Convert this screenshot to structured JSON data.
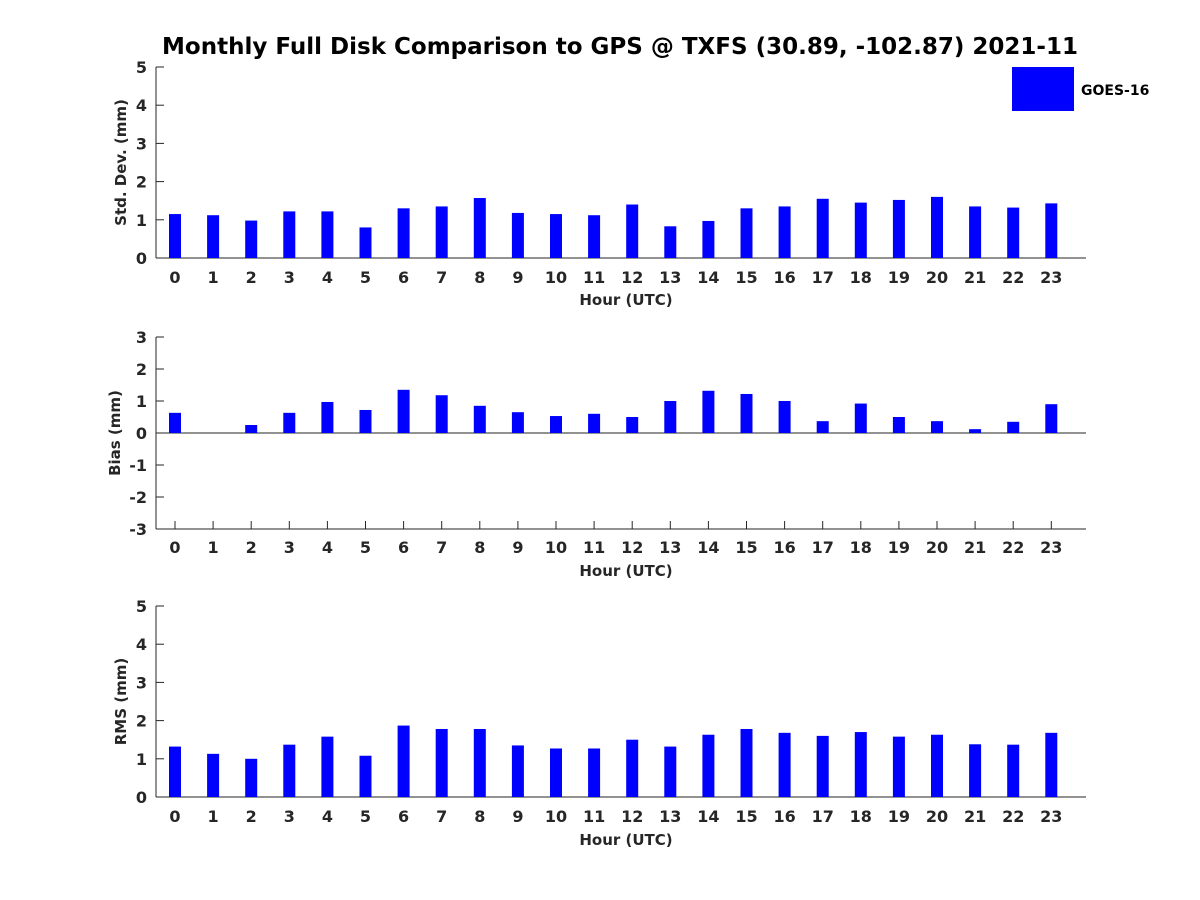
{
  "figure_title": "Monthly Full Disk Comparison to GPS @ TXFS (30.89, -102.87) 2021-11",
  "legend": {
    "label": "GOES-16",
    "color": "#0000ff"
  },
  "chart_data": [
    {
      "type": "bar",
      "name": "std-dev",
      "title": "Monthly Full Disk Comparison to GPS @ TXFS (30.89, -102.87) 2021-11",
      "xlabel": "Hour (UTC)",
      "ylabel": "Std. Dev. (mm)",
      "ylim": [
        0,
        5
      ],
      "yticks": [
        0,
        1,
        2,
        3,
        4,
        5
      ],
      "categories": [
        "0",
        "1",
        "2",
        "3",
        "4",
        "5",
        "6",
        "7",
        "8",
        "9",
        "10",
        "11",
        "12",
        "13",
        "14",
        "15",
        "16",
        "17",
        "18",
        "19",
        "20",
        "21",
        "22",
        "23"
      ],
      "series": [
        {
          "name": "GOES-16",
          "color": "#0000ff",
          "values": [
            1.15,
            1.12,
            0.98,
            1.22,
            1.22,
            0.8,
            1.3,
            1.35,
            1.57,
            1.18,
            1.15,
            1.12,
            1.4,
            0.83,
            0.97,
            1.3,
            1.35,
            1.55,
            1.45,
            1.52,
            1.6,
            1.35,
            1.32,
            1.43
          ]
        }
      ],
      "legend": "top-right"
    },
    {
      "type": "bar",
      "name": "bias",
      "xlabel": "Hour (UTC)",
      "ylabel": "Bias (mm)",
      "ylim": [
        -3,
        3
      ],
      "yticks": [
        -3,
        -2,
        -1,
        0,
        1,
        2,
        3
      ],
      "zero_line": true,
      "categories": [
        "0",
        "1",
        "2",
        "3",
        "4",
        "5",
        "6",
        "7",
        "8",
        "9",
        "10",
        "11",
        "12",
        "13",
        "14",
        "15",
        "16",
        "17",
        "18",
        "19",
        "20",
        "21",
        "22",
        "23"
      ],
      "series": [
        {
          "name": "GOES-16",
          "color": "#0000ff",
          "values": [
            0.63,
            0.0,
            0.25,
            0.63,
            0.97,
            0.72,
            1.35,
            1.18,
            0.85,
            0.65,
            0.53,
            0.6,
            0.5,
            1.0,
            1.32,
            1.22,
            1.0,
            0.37,
            0.92,
            0.5,
            0.37,
            0.12,
            0.35,
            0.9
          ]
        }
      ]
    },
    {
      "type": "bar",
      "name": "rms",
      "xlabel": "Hour (UTC)",
      "ylabel": "RMS (mm)",
      "ylim": [
        0,
        5
      ],
      "yticks": [
        0,
        1,
        2,
        3,
        4,
        5
      ],
      "categories": [
        "0",
        "1",
        "2",
        "3",
        "4",
        "5",
        "6",
        "7",
        "8",
        "9",
        "10",
        "11",
        "12",
        "13",
        "14",
        "15",
        "16",
        "17",
        "18",
        "19",
        "20",
        "21",
        "22",
        "23"
      ],
      "series": [
        {
          "name": "GOES-16",
          "color": "#0000ff",
          "values": [
            1.32,
            1.13,
            1.0,
            1.37,
            1.58,
            1.08,
            1.87,
            1.78,
            1.78,
            1.35,
            1.27,
            1.27,
            1.5,
            1.32,
            1.63,
            1.78,
            1.68,
            1.6,
            1.7,
            1.58,
            1.63,
            1.38,
            1.37,
            1.68
          ]
        }
      ]
    }
  ]
}
